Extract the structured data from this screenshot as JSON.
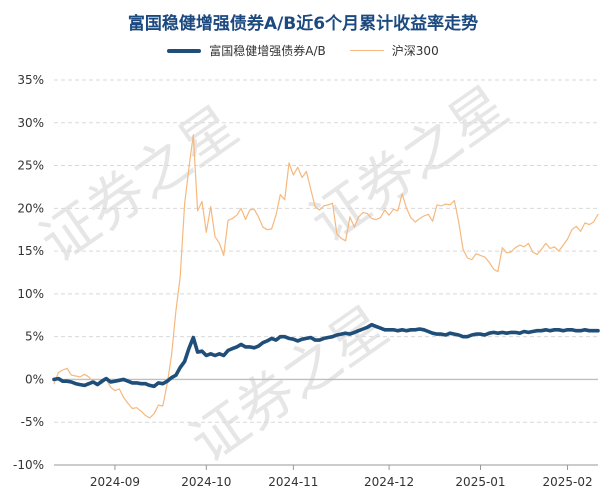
{
  "colors": {
    "fund": "#1f4e79",
    "index": "#f5b97e",
    "grid": "#d9d9d9",
    "zero": "#bfbfbf",
    "title": "#1c4a80",
    "watermark": "#e6e6e6"
  },
  "watermark": [
    "证券之星",
    "证券之星",
    "证券之星"
  ],
  "chart_data": {
    "type": "line",
    "title": "富国稳健增强债券A/B近6个月累计收益率走势",
    "ylim": [
      -10,
      35
    ],
    "y_ticks": [
      -10,
      -5,
      0,
      5,
      10,
      15,
      20,
      25,
      30,
      35
    ],
    "y_tick_labels": [
      "-10%",
      "-5%",
      "0%",
      "5%",
      "10%",
      "15%",
      "20%",
      "25%",
      "30%",
      "35%"
    ],
    "xlim": [
      0,
      125
    ],
    "x_ticks": [
      {
        "label": "2024-09",
        "x": 14
      },
      {
        "label": "2024-10",
        "x": 35
      },
      {
        "label": "2024-11",
        "x": 55
      },
      {
        "label": "2024-12",
        "x": 77
      },
      {
        "label": "2025-01",
        "x": 98
      },
      {
        "label": "2025-02",
        "x": 118
      }
    ],
    "grid": "horizontal",
    "legend_position": "top-center",
    "series": [
      {
        "name": "富国稳健增强债券A/B",
        "color": "#1f4e79",
        "values": [
          [
            0,
            0.0
          ],
          [
            1,
            0.1
          ],
          [
            2,
            -0.2
          ],
          [
            3,
            -0.2
          ],
          [
            4,
            -0.3
          ],
          [
            5,
            -0.5
          ],
          [
            6,
            -0.6
          ],
          [
            7,
            -0.7
          ],
          [
            8,
            -0.5
          ],
          [
            9,
            -0.3
          ],
          [
            10,
            -0.6
          ],
          [
            11,
            -0.2
          ],
          [
            12,
            0.1
          ],
          [
            13,
            -0.3
          ],
          [
            14,
            -0.2
          ],
          [
            15,
            -0.1
          ],
          [
            16,
            0.0
          ],
          [
            17,
            -0.2
          ],
          [
            18,
            -0.4
          ],
          [
            19,
            -0.4
          ],
          [
            20,
            -0.5
          ],
          [
            21,
            -0.5
          ],
          [
            22,
            -0.7
          ],
          [
            23,
            -0.8
          ],
          [
            24,
            -0.4
          ],
          [
            25,
            -0.5
          ],
          [
            26,
            -0.2
          ],
          [
            27,
            0.2
          ],
          [
            28,
            0.5
          ],
          [
            29,
            1.4
          ],
          [
            30,
            2.1
          ],
          [
            31,
            3.6
          ],
          [
            32,
            4.9
          ],
          [
            33,
            3.2
          ],
          [
            34,
            3.3
          ],
          [
            35,
            2.8
          ],
          [
            36,
            3.0
          ],
          [
            37,
            2.8
          ],
          [
            38,
            3.0
          ],
          [
            39,
            2.8
          ],
          [
            40,
            3.4
          ],
          [
            41,
            3.6
          ],
          [
            42,
            3.8
          ],
          [
            43,
            4.1
          ],
          [
            44,
            3.8
          ],
          [
            45,
            3.8
          ],
          [
            46,
            3.7
          ],
          [
            47,
            3.9
          ],
          [
            48,
            4.3
          ],
          [
            49,
            4.5
          ],
          [
            50,
            4.8
          ],
          [
            51,
            4.6
          ],
          [
            52,
            5.0
          ],
          [
            53,
            5.0
          ],
          [
            54,
            4.8
          ],
          [
            55,
            4.7
          ],
          [
            56,
            4.5
          ],
          [
            57,
            4.7
          ],
          [
            58,
            4.8
          ],
          [
            59,
            4.9
          ],
          [
            60,
            4.6
          ],
          [
            61,
            4.6
          ],
          [
            62,
            4.8
          ],
          [
            63,
            4.9
          ],
          [
            64,
            5.0
          ],
          [
            65,
            5.2
          ],
          [
            66,
            5.3
          ],
          [
            67,
            5.4
          ],
          [
            68,
            5.3
          ],
          [
            69,
            5.5
          ],
          [
            70,
            5.7
          ],
          [
            71,
            5.9
          ],
          [
            72,
            6.1
          ],
          [
            73,
            6.4
          ],
          [
            74,
            6.2
          ],
          [
            75,
            6.0
          ],
          [
            76,
            5.8
          ],
          [
            77,
            5.8
          ],
          [
            78,
            5.8
          ],
          [
            79,
            5.7
          ],
          [
            80,
            5.8
          ],
          [
            81,
            5.7
          ],
          [
            82,
            5.8
          ],
          [
            83,
            5.8
          ],
          [
            84,
            5.9
          ],
          [
            85,
            5.8
          ],
          [
            86,
            5.6
          ],
          [
            87,
            5.4
          ],
          [
            88,
            5.3
          ],
          [
            89,
            5.3
          ],
          [
            90,
            5.2
          ],
          [
            91,
            5.4
          ],
          [
            92,
            5.3
          ],
          [
            93,
            5.2
          ],
          [
            94,
            5.0
          ],
          [
            95,
            5.0
          ],
          [
            96,
            5.2
          ],
          [
            97,
            5.3
          ],
          [
            98,
            5.3
          ],
          [
            99,
            5.2
          ],
          [
            100,
            5.4
          ],
          [
            101,
            5.5
          ],
          [
            102,
            5.4
          ],
          [
            103,
            5.5
          ],
          [
            104,
            5.4
          ],
          [
            105,
            5.5
          ],
          [
            106,
            5.5
          ],
          [
            107,
            5.4
          ],
          [
            108,
            5.6
          ],
          [
            109,
            5.5
          ],
          [
            110,
            5.6
          ],
          [
            111,
            5.7
          ],
          [
            112,
            5.7
          ],
          [
            113,
            5.8
          ],
          [
            114,
            5.7
          ],
          [
            115,
            5.8
          ],
          [
            116,
            5.8
          ],
          [
            117,
            5.7
          ],
          [
            118,
            5.8
          ],
          [
            119,
            5.8
          ],
          [
            120,
            5.7
          ],
          [
            121,
            5.7
          ],
          [
            122,
            5.8
          ],
          [
            123,
            5.7
          ],
          [
            124,
            5.7
          ],
          [
            125,
            5.7
          ]
        ]
      },
      {
        "name": "沪深300",
        "color": "#f5b97e",
        "values": [
          [
            0,
            -0.5
          ],
          [
            1,
            0.8
          ],
          [
            2,
            1.1
          ],
          [
            3,
            1.3
          ],
          [
            4,
            0.5
          ],
          [
            5,
            0.4
          ],
          [
            6,
            0.3
          ],
          [
            7,
            0.6
          ],
          [
            8,
            0.3
          ],
          [
            9,
            -0.3
          ],
          [
            10,
            -0.6
          ],
          [
            11,
            -0.5
          ],
          [
            12,
            0.0
          ],
          [
            13,
            -0.9
          ],
          [
            14,
            -1.3
          ],
          [
            15,
            -1.1
          ],
          [
            16,
            -2.1
          ],
          [
            17,
            -2.8
          ],
          [
            18,
            -3.4
          ],
          [
            19,
            -3.3
          ],
          [
            20,
            -3.7
          ],
          [
            21,
            -4.2
          ],
          [
            22,
            -4.5
          ],
          [
            23,
            -4.0
          ],
          [
            24,
            -3.0
          ],
          [
            25,
            -3.1
          ],
          [
            26,
            -0.5
          ],
          [
            27,
            2.8
          ],
          [
            28,
            8.0
          ],
          [
            29,
            12.0
          ],
          [
            30,
            20.5
          ],
          [
            31,
            24.7
          ],
          [
            32,
            28.6
          ],
          [
            33,
            19.7
          ],
          [
            34,
            20.8
          ],
          [
            35,
            17.2
          ],
          [
            36,
            20.2
          ],
          [
            37,
            16.7
          ],
          [
            38,
            15.9
          ],
          [
            39,
            14.5
          ],
          [
            40,
            18.6
          ],
          [
            41,
            18.8
          ],
          [
            42,
            19.2
          ],
          [
            43,
            20.0
          ],
          [
            44,
            18.7
          ],
          [
            45,
            19.8
          ],
          [
            46,
            19.9
          ],
          [
            47,
            19.0
          ],
          [
            48,
            17.8
          ],
          [
            49,
            17.5
          ],
          [
            50,
            17.6
          ],
          [
            51,
            19.2
          ],
          [
            52,
            21.6
          ],
          [
            53,
            21.0
          ],
          [
            54,
            25.3
          ],
          [
            55,
            23.9
          ],
          [
            56,
            24.8
          ],
          [
            57,
            23.6
          ],
          [
            58,
            24.3
          ],
          [
            59,
            22.2
          ],
          [
            60,
            20.2
          ],
          [
            61,
            19.8
          ],
          [
            62,
            20.3
          ],
          [
            63,
            20.4
          ],
          [
            64,
            20.6
          ],
          [
            65,
            17.0
          ],
          [
            66,
            16.5
          ],
          [
            67,
            16.2
          ],
          [
            68,
            19.0
          ],
          [
            69,
            17.8
          ],
          [
            70,
            19.0
          ],
          [
            71,
            19.5
          ],
          [
            72,
            19.4
          ],
          [
            73,
            18.8
          ],
          [
            74,
            18.7
          ],
          [
            75,
            18.9
          ],
          [
            76,
            19.8
          ],
          [
            77,
            19.2
          ],
          [
            78,
            19.9
          ],
          [
            79,
            19.7
          ],
          [
            80,
            21.7
          ],
          [
            81,
            20.0
          ],
          [
            82,
            18.9
          ],
          [
            83,
            18.4
          ],
          [
            84,
            18.8
          ],
          [
            85,
            19.1
          ],
          [
            86,
            19.3
          ],
          [
            87,
            18.5
          ],
          [
            88,
            20.4
          ],
          [
            89,
            20.3
          ],
          [
            90,
            20.5
          ],
          [
            91,
            20.4
          ],
          [
            92,
            20.9
          ],
          [
            93,
            18.4
          ],
          [
            94,
            15.2
          ],
          [
            95,
            14.2
          ],
          [
            96,
            14.0
          ],
          [
            97,
            14.7
          ],
          [
            98,
            14.5
          ],
          [
            99,
            14.3
          ],
          [
            100,
            13.7
          ],
          [
            101,
            12.9
          ],
          [
            102,
            12.6
          ],
          [
            103,
            15.4
          ],
          [
            104,
            14.8
          ],
          [
            105,
            14.9
          ],
          [
            106,
            15.4
          ],
          [
            107,
            15.7
          ],
          [
            108,
            15.5
          ],
          [
            109,
            15.9
          ],
          [
            110,
            14.9
          ],
          [
            111,
            14.6
          ],
          [
            112,
            15.2
          ],
          [
            113,
            15.9
          ],
          [
            114,
            15.3
          ],
          [
            115,
            15.5
          ],
          [
            116,
            15.0
          ],
          [
            117,
            15.7
          ],
          [
            118,
            16.4
          ],
          [
            119,
            17.5
          ],
          [
            120,
            17.9
          ],
          [
            121,
            17.3
          ],
          [
            122,
            18.3
          ],
          [
            123,
            18.1
          ],
          [
            124,
            18.4
          ],
          [
            125,
            19.3
          ]
        ]
      }
    ]
  }
}
